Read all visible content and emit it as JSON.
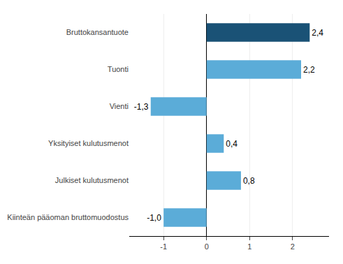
{
  "chart_data": {
    "type": "bar",
    "orientation": "horizontal",
    "categories": [
      "Kiinteän pääoman bruttomuodostus",
      "Julkiset kulutusmenot",
      "Yksityiset kulutusmenot",
      "Vienti",
      "Tuonti",
      "Bruttokansantuote"
    ],
    "values": [
      -1.0,
      0.8,
      0.4,
      -1.3,
      2.2,
      2.4
    ],
    "value_labels": [
      "-1,0",
      "0,8",
      "0,4",
      "-1,3",
      "2,2",
      "2,4"
    ],
    "colors": [
      "#5BACD8",
      "#5BACD8",
      "#5BACD8",
      "#5BACD8",
      "#5BACD8",
      "#1A5276"
    ],
    "xlim": [
      -1.8,
      2.85
    ],
    "xticks": [
      -1,
      0,
      1,
      2
    ],
    "grid": true,
    "data_labels": true
  }
}
